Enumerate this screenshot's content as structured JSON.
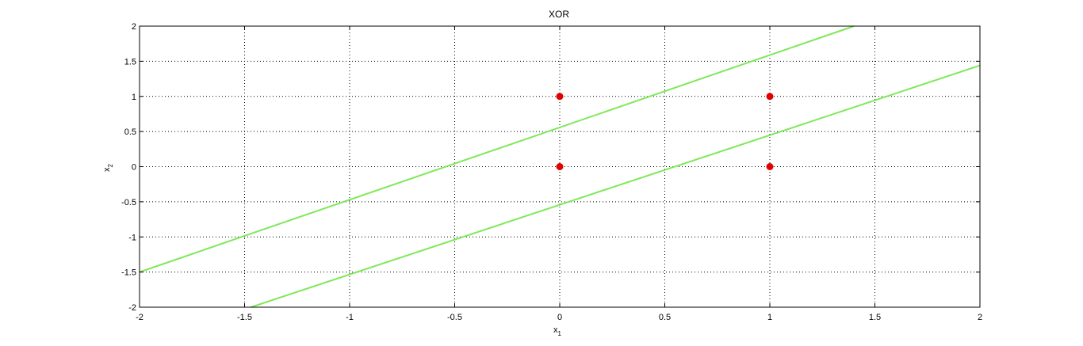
{
  "chart_data": {
    "type": "scatter",
    "title": "XOR",
    "xlabel": {
      "base": "x",
      "sub": "1"
    },
    "ylabel": {
      "base": "x",
      "sub": "2"
    },
    "xlim": [
      -2,
      2
    ],
    "ylim": [
      -2,
      2
    ],
    "xticks": [
      -2,
      -1.5,
      -1,
      -0.5,
      0,
      0.5,
      1,
      1.5,
      2
    ],
    "yticks": [
      -2,
      -1.5,
      -1,
      -0.5,
      0,
      0.5,
      1,
      1.5,
      2
    ],
    "xtick_labels": [
      "-2",
      "-1.5",
      "-1",
      "-0.5",
      "0",
      "0.5",
      "1",
      "1.5",
      "2"
    ],
    "ytick_labels": [
      "-2",
      "-1.5",
      "-1",
      "-0.5",
      "0",
      "0.5",
      "1",
      "1.5",
      "2"
    ],
    "grid": true,
    "grid_style": "dotted",
    "points": [
      {
        "x": 0,
        "y": 0
      },
      {
        "x": 0,
        "y": 1
      },
      {
        "x": 1,
        "y": 0
      },
      {
        "x": 1,
        "y": 1
      }
    ],
    "lines": [
      {
        "x": [
          -2,
          1.4
        ],
        "y": [
          -1.5,
          2.0
        ]
      },
      {
        "x": [
          -1.47,
          2
        ],
        "y": [
          -2.0,
          1.44
        ]
      }
    ],
    "point_color": "#e00000",
    "line_color": "#7fe85a"
  }
}
